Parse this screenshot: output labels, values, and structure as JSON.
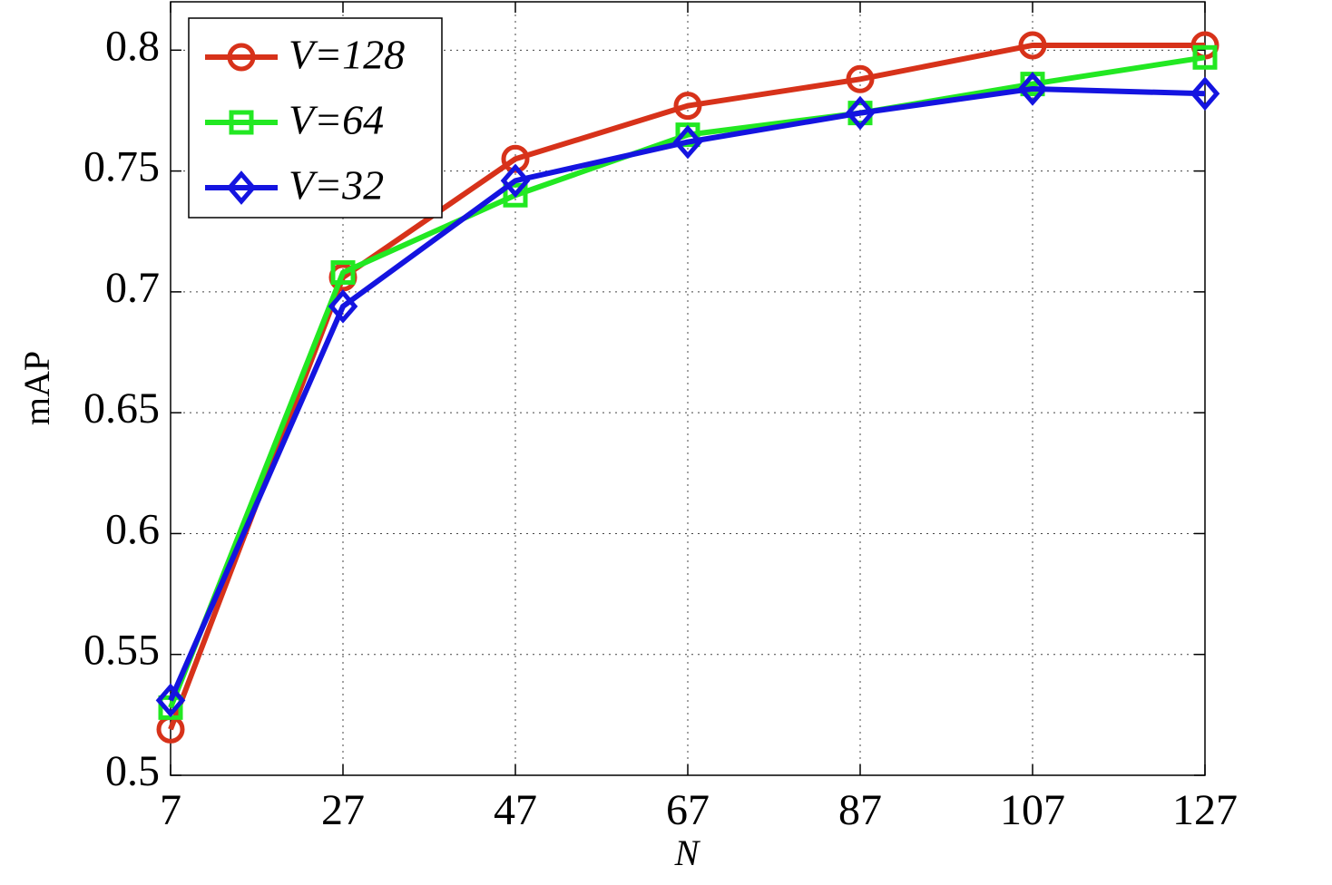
{
  "chart_data": {
    "type": "line",
    "x_label": "N",
    "y_label": "mAP",
    "x": [
      7,
      27,
      47,
      67,
      87,
      107,
      127
    ],
    "series": [
      {
        "name": "V=128",
        "color": "#d7321a",
        "marker": "circle",
        "values": [
          0.519,
          0.706,
          0.755,
          0.777,
          0.788,
          0.802,
          0.802
        ]
      },
      {
        "name": "V=64",
        "color": "#22e822",
        "marker": "square",
        "values": [
          0.528,
          0.708,
          0.74,
          0.765,
          0.774,
          0.786,
          0.797
        ]
      },
      {
        "name": "V=32",
        "color": "#1414e0",
        "marker": "diamond",
        "values": [
          0.531,
          0.694,
          0.746,
          0.762,
          0.774,
          0.784,
          0.782
        ]
      }
    ],
    "xlim": [
      7,
      127
    ],
    "ylim": [
      0.5,
      0.82
    ],
    "xticks": [
      7,
      27,
      47,
      67,
      87,
      107,
      127
    ],
    "yticks": [
      0.5,
      0.55,
      0.6,
      0.65,
      0.7,
      0.75,
      0.8
    ],
    "grid": true,
    "legend_position": "upper-left"
  }
}
